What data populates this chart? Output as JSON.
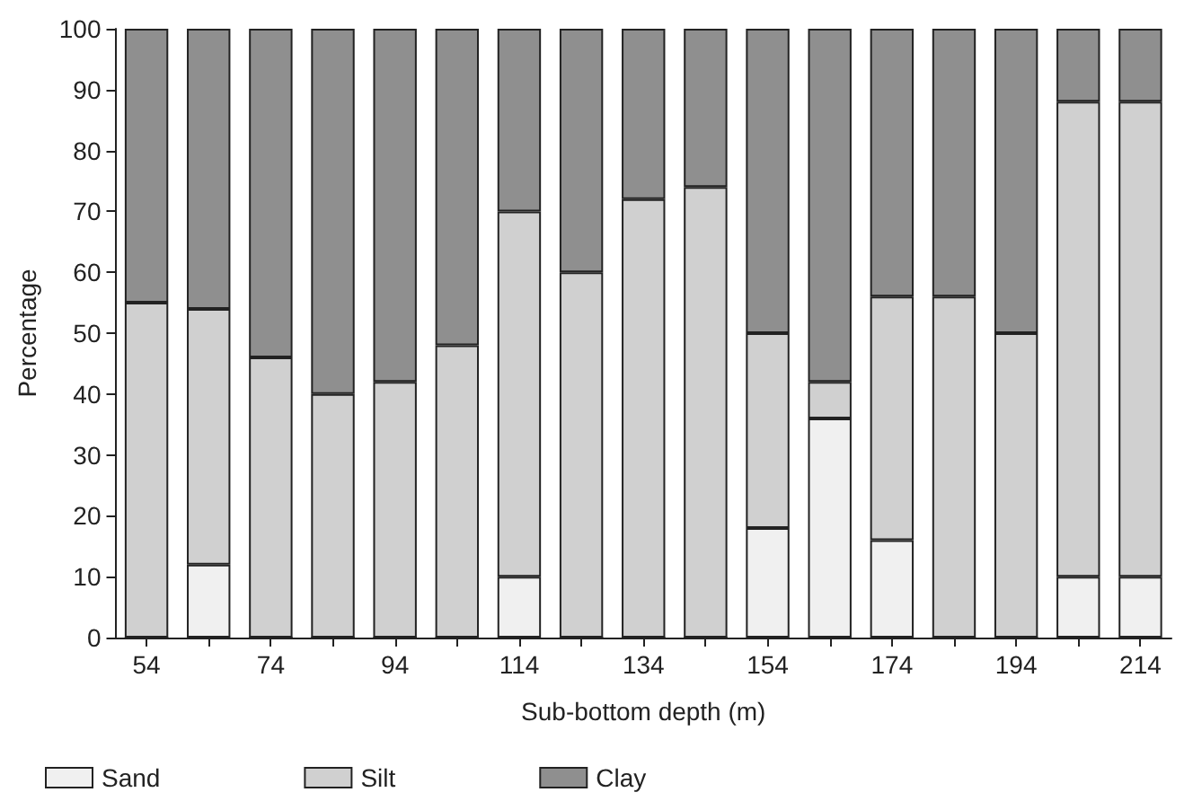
{
  "chart_data": {
    "type": "bar",
    "stacked": true,
    "xlabel": "Sub-bottom depth (m)",
    "ylabel": "Percentage",
    "categories": [
      "54",
      null,
      "74",
      null,
      "94",
      null,
      "114",
      null,
      "134",
      null,
      "154",
      null,
      "174",
      null,
      "194",
      null,
      "214"
    ],
    "series": [
      {
        "name": "Sand",
        "color": "#f0f0f0",
        "values": [
          0,
          12,
          0,
          0,
          0,
          0,
          10,
          0,
          0,
          0,
          18,
          36,
          16,
          0,
          0,
          10,
          10
        ]
      },
      {
        "name": "Silt",
        "color": "#d0d0d0",
        "values": [
          55,
          42,
          46,
          40,
          42,
          48,
          60,
          60,
          72,
          74,
          32,
          6,
          40,
          56,
          50,
          78,
          78
        ]
      },
      {
        "name": "Clay",
        "color": "#8f8f8f",
        "values": [
          45,
          46,
          54,
          60,
          58,
          52,
          30,
          40,
          28,
          26,
          50,
          58,
          44,
          44,
          50,
          12,
          12
        ]
      }
    ],
    "ylim": [
      0,
      100
    ],
    "yticks": [
      0,
      10,
      20,
      30,
      40,
      50,
      60,
      70,
      80,
      90,
      100
    ],
    "grid": false,
    "legend": "bottom"
  }
}
